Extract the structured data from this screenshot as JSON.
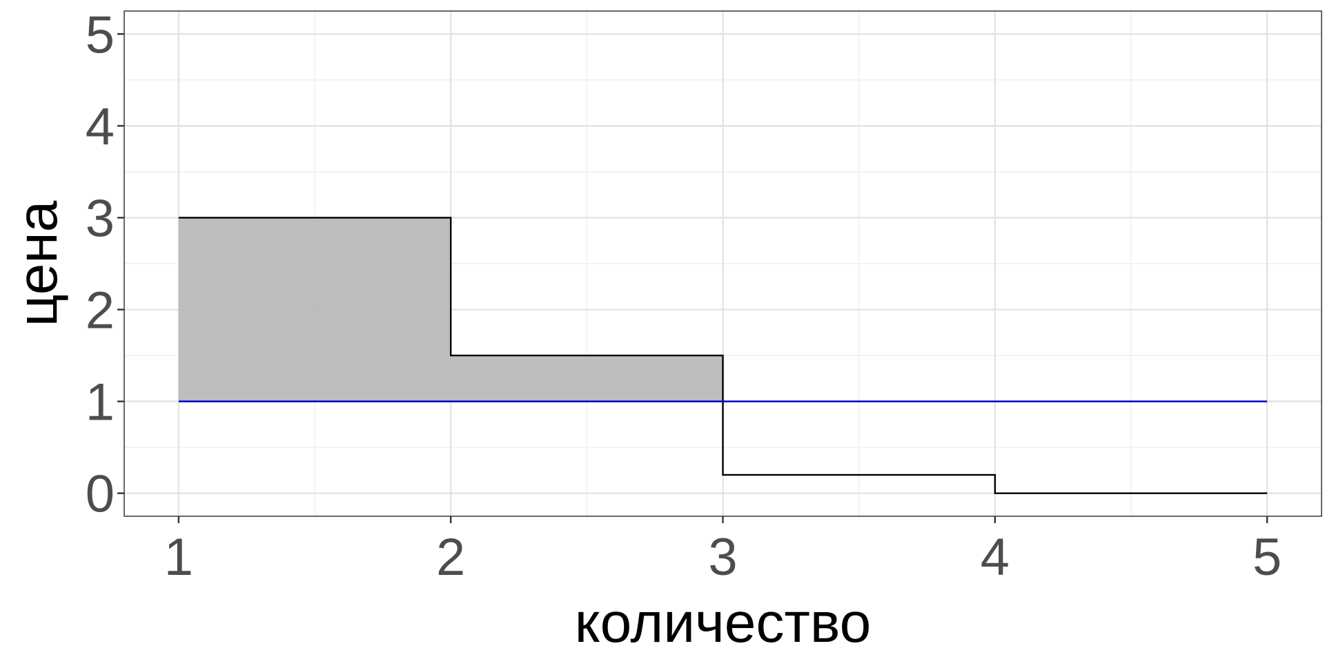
{
  "chart_data": {
    "type": "step",
    "title": "",
    "xlabel": "количество",
    "ylabel": "цена",
    "xlim": [
      0.8,
      5.2
    ],
    "ylim": [
      -0.25,
      5.25
    ],
    "x_ticks": [
      1,
      2,
      3,
      4,
      5
    ],
    "y_ticks": [
      0,
      1,
      2,
      3,
      4,
      5
    ],
    "grid": true,
    "legend": "none",
    "series": [
      {
        "kind": "step",
        "color": "#000000",
        "points": [
          {
            "x": 1,
            "y": 3
          },
          {
            "x": 2,
            "y": 3
          },
          {
            "x": 2,
            "y": 1.5
          },
          {
            "x": 3,
            "y": 1.5
          },
          {
            "x": 3,
            "y": 0.2
          },
          {
            "x": 4,
            "y": 0.2
          },
          {
            "x": 4,
            "y": 0
          },
          {
            "x": 5,
            "y": 0
          }
        ]
      },
      {
        "kind": "line",
        "color": "#0000cc",
        "points": [
          {
            "x": 1,
            "y": 1
          },
          {
            "x": 5,
            "y": 1
          }
        ]
      }
    ],
    "shaded_areas": [
      {
        "x0": 1,
        "x1": 2,
        "y0": 1,
        "y1": 3,
        "color": "#b3b3b3"
      },
      {
        "x0": 2,
        "x1": 3,
        "y0": 1,
        "y1": 1.5,
        "color": "#b3b3b3"
      }
    ]
  }
}
